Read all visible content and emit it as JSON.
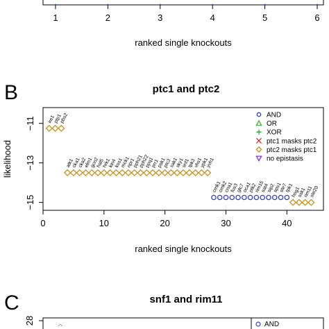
{
  "panel_a": {
    "xticks": [
      "1",
      "2",
      "3",
      "4",
      "5",
      "6"
    ],
    "xlabel": "ranked single knockouts"
  },
  "panel_b": {
    "letter": "B",
    "title": "ptc1 and ptc2",
    "ylabel": "likelihood",
    "xlabel": "ranked single knockouts",
    "xticks": [
      "0",
      "10",
      "20",
      "30",
      "40"
    ],
    "yticks": [
      "-11",
      "-13",
      "-15"
    ],
    "legend": [
      {
        "label": "AND",
        "marker": "circle",
        "color": "#2f3bd6"
      },
      {
        "label": "OR",
        "marker": "triangle",
        "color": "#3bb03b"
      },
      {
        "label": "XOR",
        "marker": "plus",
        "color": "#22aa22"
      },
      {
        "label": "ptc1 masks ptc2",
        "marker": "cross",
        "color": "#d62728"
      },
      {
        "label": "ptc2 masks ptc1",
        "marker": "diamond",
        "color": "#c8901a"
      },
      {
        "label": "no epistasis",
        "marker": "triangle-down",
        "color": "#8a2be2"
      }
    ]
  },
  "panel_c": {
    "letter": "C",
    "title": "snf1 and rim11",
    "ytick_top": "28",
    "legend_first": "AND"
  },
  "chart_data": [
    {
      "type": "scatter",
      "title": "ptc1 and ptc2",
      "xlabel": "ranked single knockouts",
      "ylabel": "likelihood",
      "xlim": [
        0,
        46
      ],
      "ylim": [
        -15.4,
        -10.2
      ],
      "legend_position": "top-right",
      "series": [
        {
          "name": "ptc2 masks ptc1",
          "marker": "diamond",
          "color": "#c8901a",
          "points": [
            {
              "x": 1,
              "y": -11.25,
              "label": "ire1"
            },
            {
              "x": 2,
              "y": -11.25,
              "label": "ptp1"
            },
            {
              "x": 3,
              "y": -11.25,
              "label": "pbs2"
            },
            {
              "x": 4,
              "y": -13.5,
              "label": "atk1"
            },
            {
              "x": 5,
              "y": -13.5,
              "label": "cka1"
            },
            {
              "x": 6,
              "y": -13.5,
              "label": "cka2"
            },
            {
              "x": 7,
              "y": -13.5,
              "label": "elm1"
            },
            {
              "x": 8,
              "y": -13.5,
              "label": "gcn2"
            },
            {
              "x": 9,
              "y": -13.5,
              "label": "hal5"
            },
            {
              "x": 10,
              "y": -13.5,
              "label": "hrk1"
            },
            {
              "x": 11,
              "y": -13.5,
              "label": "kin4"
            },
            {
              "x": 12,
              "y": -13.5,
              "label": "kss1"
            },
            {
              "x": 13,
              "y": -13.5,
              "label": "mck1"
            },
            {
              "x": 14,
              "y": -13.5,
              "label": "npr1"
            },
            {
              "x": 15,
              "y": -13.5,
              "label": "pph21"
            },
            {
              "x": 16,
              "y": -13.5,
              "label": "pph22"
            },
            {
              "x": 17,
              "y": -13.5,
              "label": "ppq1"
            },
            {
              "x": 18,
              "y": -13.5,
              "label": "prr1"
            },
            {
              "x": 19,
              "y": -13.5,
              "label": "psk1"
            },
            {
              "x": 20,
              "y": -13.5,
              "label": "ptc3"
            },
            {
              "x": 21,
              "y": -13.5,
              "label": "sak1"
            },
            {
              "x": 22,
              "y": -13.5,
              "label": "sky1"
            },
            {
              "x": 23,
              "y": -13.5,
              "label": "snf1"
            },
            {
              "x": 24,
              "y": -13.5,
              "label": "tpk3"
            },
            {
              "x": 25,
              "y": -13.5,
              "label": "vhs1"
            },
            {
              "x": 26,
              "y": -13.5,
              "label": "ypk1"
            },
            {
              "x": 27,
              "y": -13.5,
              "label": "yvh1"
            },
            {
              "x": 41,
              "y": -15.0,
              "label": "hog1"
            },
            {
              "x": 42,
              "y": -15.0,
              "label": "ssk1"
            },
            {
              "x": 43,
              "y": -15.0,
              "label": "rim11"
            },
            {
              "x": 44,
              "y": -15.0,
              "label": "ste20"
            }
          ]
        },
        {
          "name": "AND",
          "marker": "circle",
          "color": "#2f3bd6",
          "points": [
            {
              "x": 28,
              "y": -14.75,
              "label": "cmk1"
            },
            {
              "x": 29,
              "y": -14.75,
              "label": "cmk2"
            },
            {
              "x": 30,
              "y": -14.75,
              "label": "cna1"
            },
            {
              "x": 31,
              "y": -14.75,
              "label": "fus3"
            },
            {
              "x": 32,
              "y": -14.75,
              "label": "glc7"
            },
            {
              "x": 33,
              "y": -14.75,
              "label": "oca1"
            },
            {
              "x": 34,
              "y": -14.75,
              "label": "ptk2"
            },
            {
              "x": 35,
              "y": -14.75,
              "label": "rim15"
            },
            {
              "x": 36,
              "y": -14.75,
              "label": "sat4"
            },
            {
              "x": 37,
              "y": -14.75,
              "label": "sip2"
            },
            {
              "x": 38,
              "y": -14.75,
              "label": "sps1"
            },
            {
              "x": 39,
              "y": -14.75,
              "label": "ste7"
            },
            {
              "x": 40,
              "y": -14.75,
              "label": "tpk1"
            }
          ]
        }
      ]
    }
  ]
}
